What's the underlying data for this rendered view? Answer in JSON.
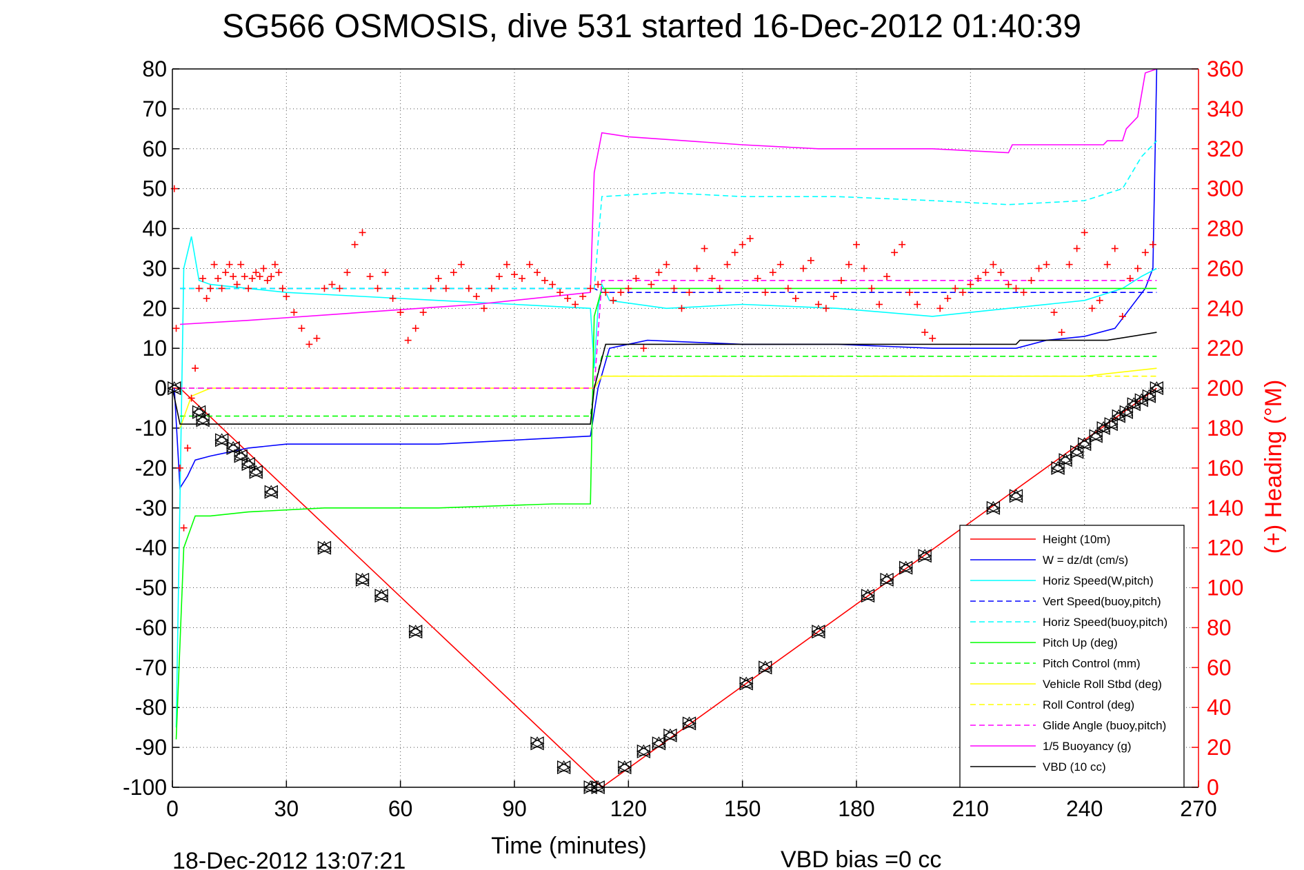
{
  "chart_data": {
    "type": "line",
    "title": "SG566 OSMOSIS, dive 531 started 16-Dec-2012 01:40:39",
    "xlabel": "Time (minutes)",
    "ylabel_right": "(+) Heading (°M)",
    "xlim": [
      0,
      270
    ],
    "ylim": [
      -100,
      80
    ],
    "ylim_right": [
      0,
      360
    ],
    "x_ticks": [
      "0",
      "30",
      "60",
      "90",
      "120",
      "150",
      "180",
      "210",
      "240",
      "270"
    ],
    "y_ticks": [
      "80",
      "70",
      "60",
      "50",
      "40",
      "30",
      "20",
      "10",
      "0",
      "-10",
      "-20",
      "-30",
      "-40",
      "-50",
      "-60",
      "-70",
      "-80",
      "-90",
      "-100"
    ],
    "y_right_ticks": [
      "360",
      "340",
      "320",
      "300",
      "280",
      "260",
      "240",
      "220",
      "200",
      "180",
      "160",
      "140",
      "120",
      "100",
      "80",
      "60",
      "40",
      "20",
      "0"
    ],
    "grid": true,
    "legend_position": "bottom-right",
    "footer_left": "18-Dec-2012 13:07:21",
    "footer_right": "VBD bias =0 cc",
    "series": [
      {
        "name": "Height (10m)",
        "color": "#ff0000",
        "style": "solid",
        "x": [
          0,
          2,
          113,
          259
        ],
        "y": [
          0,
          0,
          -100,
          0
        ]
      },
      {
        "name": "W = dz/dt (cm/s)",
        "color": "#0000ff",
        "style": "solid",
        "x": [
          0.5,
          2,
          4,
          6,
          10,
          15,
          20,
          30,
          50,
          70,
          90,
          110,
          112,
          115,
          125,
          150,
          175,
          200,
          215,
          222,
          230,
          240,
          248,
          252,
          256,
          258,
          259
        ],
        "y": [
          0,
          -25,
          -22,
          -18,
          -17,
          -16,
          -15,
          -14,
          -14,
          -14,
          -13,
          -12,
          0,
          10,
          12,
          11,
          11,
          10,
          10,
          10,
          12,
          13,
          15,
          20,
          25,
          30,
          80
        ]
      },
      {
        "name": "Horiz Speed(W,pitch)",
        "color": "#00ffff",
        "style": "solid",
        "x": [
          1,
          3,
          5,
          7,
          10,
          20,
          30,
          50,
          70,
          90,
          110,
          111,
          112,
          113,
          115,
          130,
          150,
          175,
          200,
          220,
          240,
          250,
          255,
          259
        ],
        "y": [
          -85,
          30,
          38,
          27,
          26,
          25,
          24,
          23,
          22,
          21,
          20,
          5,
          20,
          26,
          22,
          20,
          21,
          20,
          18,
          20,
          22,
          25,
          28,
          30
        ]
      },
      {
        "name": "Vert Speed(buoy,pitch)",
        "color": "#0000ff",
        "style": "dashed",
        "x": [
          2,
          111,
          113,
          220,
          259
        ],
        "y": [
          25,
          25,
          24,
          24,
          24
        ]
      },
      {
        "name": "Horiz Speed(buoy,pitch)",
        "color": "#00ffff",
        "style": "dashed",
        "x": [
          2,
          111,
          113,
          130,
          150,
          175,
          200,
          220,
          240,
          250,
          255,
          259
        ],
        "y": [
          25,
          25,
          48,
          49,
          48,
          48,
          47,
          46,
          47,
          50,
          58,
          62
        ]
      },
      {
        "name": "Pitch Up (deg)",
        "color": "#00ff00",
        "style": "solid",
        "x": [
          1,
          3,
          6,
          10,
          20,
          40,
          70,
          100,
          110,
          111,
          113,
          140,
          180,
          220,
          259
        ],
        "y": [
          -88,
          -40,
          -32,
          -32,
          -31,
          -30,
          -30,
          -29,
          -29,
          18,
          25,
          25,
          25,
          25,
          25
        ]
      },
      {
        "name": "Pitch Control (mm)",
        "color": "#00ff00",
        "style": "dashed",
        "x": [
          2,
          110,
          111,
          113,
          220,
          259
        ],
        "y": [
          -7,
          -7,
          0,
          8,
          8,
          8
        ]
      },
      {
        "name": "Vehicle Roll Stbd (deg)",
        "color": "#ffff00",
        "style": "solid",
        "x": [
          2,
          5,
          10,
          30,
          60,
          90,
          111,
          113,
          150,
          200,
          240,
          259
        ],
        "y": [
          -10,
          -2,
          0,
          0,
          0,
          0,
          0,
          3,
          3,
          3,
          3,
          5
        ]
      },
      {
        "name": "Roll Control (deg)",
        "color": "#ffff00",
        "style": "dashed",
        "x": [
          2,
          111,
          113,
          259
        ],
        "y": [
          0,
          0,
          3,
          3
        ]
      },
      {
        "name": "Glide Angle (buoy,pitch)",
        "color": "#ff00ff",
        "style": "dashed",
        "x": [
          2,
          111,
          113,
          150,
          200,
          259
        ],
        "y": [
          0,
          0,
          27,
          27,
          27,
          27
        ]
      },
      {
        "name": "1/5 Buoyancy (g)",
        "color": "#ff00ff",
        "style": "solid",
        "x": [
          2,
          20,
          50,
          80,
          110,
          111,
          113,
          120,
          150,
          170,
          200,
          220,
          221,
          235,
          245,
          246,
          250,
          251,
          254,
          256,
          259
        ],
        "y": [
          16,
          17,
          19,
          21,
          24,
          54,
          64,
          63,
          61,
          60,
          60,
          59,
          61,
          61,
          61,
          62,
          62,
          65,
          68,
          79,
          80
        ]
      },
      {
        "name": "VBD (10 cc)",
        "color": "#000000",
        "style": "solid",
        "x": [
          0,
          2,
          110,
          111,
          114,
          200,
          222,
          223,
          245,
          246,
          259
        ],
        "y": [
          0,
          -9,
          -9,
          0,
          11,
          11,
          11,
          12,
          12,
          12,
          14
        ]
      }
    ],
    "heading_series": {
      "marker": "+",
      "color": "#ff0000",
      "axis": "right",
      "x": [
        0.5,
        1,
        2,
        3,
        4,
        5,
        6,
        7,
        8,
        9,
        10,
        11,
        12,
        13,
        14,
        15,
        16,
        17,
        18,
        19,
        20,
        21,
        22,
        23,
        24,
        25,
        26,
        27,
        28,
        29,
        30,
        32,
        34,
        36,
        38,
        40,
        42,
        44,
        46,
        48,
        50,
        52,
        54,
        56,
        58,
        60,
        62,
        64,
        66,
        68,
        70,
        72,
        74,
        76,
        78,
        80,
        82,
        84,
        86,
        88,
        90,
        92,
        94,
        96,
        98,
        100,
        102,
        104,
        106,
        108,
        110,
        112,
        114,
        116,
        118,
        120,
        122,
        124,
        126,
        128,
        130,
        132,
        134,
        136,
        138,
        140,
        142,
        144,
        146,
        148,
        150,
        152,
        154,
        156,
        158,
        160,
        162,
        164,
        166,
        168,
        170,
        172,
        174,
        176,
        178,
        180,
        182,
        184,
        186,
        188,
        190,
        192,
        194,
        196,
        198,
        200,
        202,
        204,
        206,
        208,
        210,
        212,
        214,
        216,
        218,
        220,
        222,
        224,
        226,
        228,
        230,
        232,
        234,
        236,
        238,
        240,
        242,
        244,
        246,
        248,
        250,
        252,
        254,
        256,
        258
      ],
      "y": [
        300,
        230,
        160,
        130,
        170,
        195,
        210,
        250,
        255,
        245,
        250,
        262,
        255,
        250,
        258,
        262,
        256,
        252,
        262,
        256,
        250,
        255,
        258,
        256,
        260,
        254,
        256,
        262,
        258,
        250,
        246,
        238,
        230,
        222,
        225,
        250,
        252,
        250,
        258,
        272,
        278,
        256,
        250,
        258,
        245,
        238,
        224,
        230,
        238,
        250,
        255,
        250,
        258,
        262,
        250,
        246,
        240,
        250,
        256,
        262,
        257,
        255,
        262,
        258,
        254,
        252,
        248,
        245,
        242,
        246,
        250,
        252,
        248,
        244,
        248,
        250,
        255,
        220,
        252,
        258,
        262,
        250,
        240,
        248,
        260,
        270,
        255,
        250,
        262,
        268,
        272,
        275,
        255,
        248,
        258,
        262,
        250,
        245,
        260,
        264,
        242,
        240,
        246,
        254,
        262,
        272,
        260,
        250,
        242,
        256,
        268,
        272,
        248,
        242,
        228,
        225,
        240,
        245,
        250,
        248,
        252,
        255,
        258,
        262,
        258,
        252,
        250,
        248,
        254,
        260,
        262,
        238,
        228,
        262,
        270,
        278,
        240,
        244,
        262,
        270,
        236,
        255,
        260,
        268,
        272
      ]
    },
    "event_markers": {
      "marker": "triangles",
      "color": "#000000",
      "x": [
        0.5,
        7,
        8,
        13,
        16,
        18,
        20,
        22,
        26,
        40,
        50,
        55,
        64,
        96,
        103,
        110,
        112,
        119,
        124,
        128,
        131,
        136,
        151,
        156,
        170,
        183,
        188,
        193,
        198,
        216,
        222,
        233,
        235,
        238,
        240,
        243,
        245,
        247,
        249,
        251,
        253,
        255,
        257,
        259
      ],
      "y": [
        0,
        -6,
        -8,
        -13,
        -15,
        -17,
        -19,
        -21,
        -26,
        -40,
        -48,
        -52,
        -61,
        -89,
        -95,
        -100,
        -100,
        -95,
        -91,
        -89,
        -87,
        -84,
        -74,
        -70,
        -61,
        -52,
        -48,
        -45,
        -42,
        -30,
        -27,
        -20,
        -18,
        -16,
        -14,
        -12,
        -10,
        -9,
        -7,
        -6,
        -4,
        -3,
        -2,
        0
      ]
    }
  }
}
